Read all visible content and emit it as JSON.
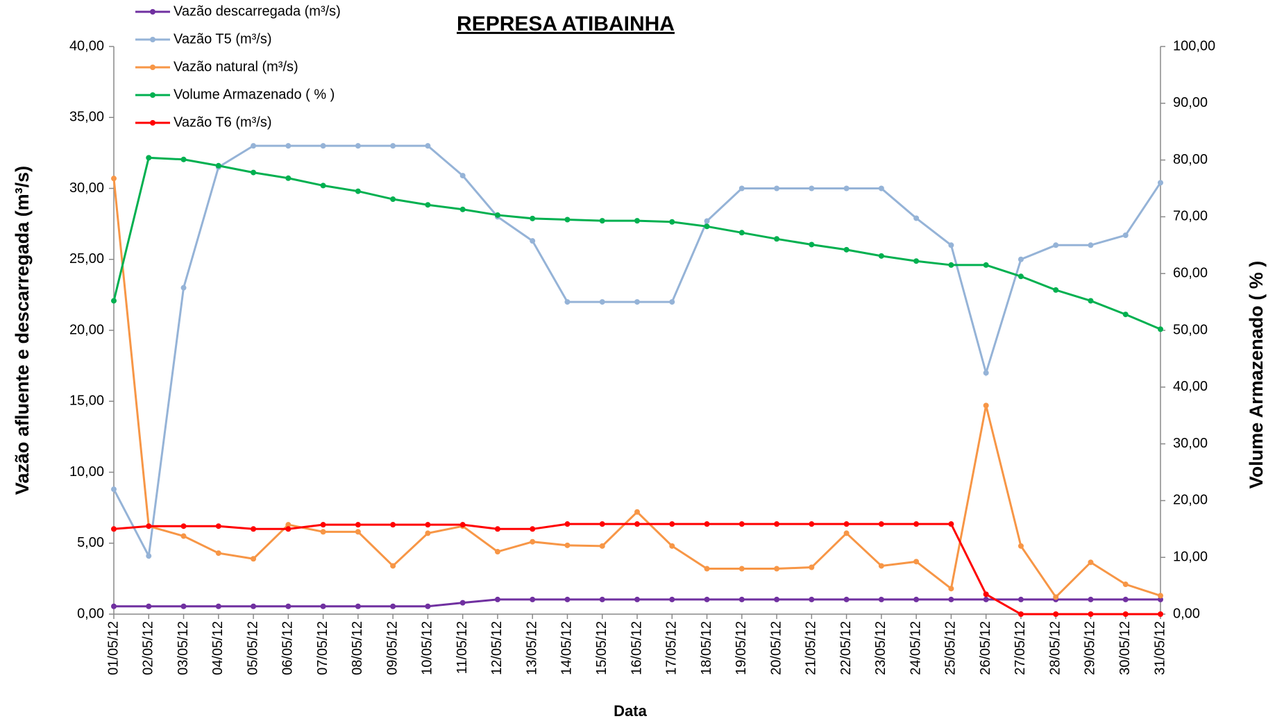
{
  "chart_data": {
    "type": "line",
    "title": "REPRESA ATIBAINHA",
    "x_label": "Data",
    "y_label": "Vazão afluente e descarregada (m³/s)",
    "y2_label": "Volume Armazenado ( % )",
    "categories": [
      "01/05/12",
      "02/05/12",
      "03/05/12",
      "04/05/12",
      "05/05/12",
      "06/05/12",
      "07/05/12",
      "08/05/12",
      "09/05/12",
      "10/05/12",
      "11/05/12",
      "12/05/12",
      "13/05/12",
      "14/05/12",
      "15/05/12",
      "16/05/12",
      "17/05/12",
      "18/05/12",
      "19/05/12",
      "20/05/12",
      "21/05/12",
      "22/05/12",
      "23/05/12",
      "24/05/12",
      "25/05/12",
      "26/05/12",
      "27/05/12",
      "28/05/12",
      "29/05/12",
      "30/05/12",
      "31/05/12"
    ],
    "series": [
      {
        "name": "Vazão descarregada (m³/s)",
        "color": "#7030a0",
        "values": [
          0.55,
          0.55,
          0.55,
          0.55,
          0.55,
          0.55,
          0.55,
          0.55,
          0.55,
          0.55,
          0.8,
          1.03,
          1.03,
          1.03,
          1.03,
          1.03,
          1.03,
          1.03,
          1.03,
          1.03,
          1.03,
          1.03,
          1.03,
          1.03,
          1.03,
          1.03,
          1.03,
          1.03,
          1.03,
          1.03,
          1.03
        ]
      },
      {
        "name": "Vazão T5 (m³/s)",
        "color": "#95b3d7",
        "values": [
          8.8,
          4.1,
          23.0,
          31.5,
          33.0,
          33.0,
          33.0,
          33.0,
          33.0,
          33.0,
          30.9,
          28.0,
          26.3,
          22.0,
          22.0,
          22.0,
          22.0,
          27.7,
          30.0,
          30.0,
          30.0,
          30.0,
          30.0,
          27.9,
          26.0,
          17.0,
          25.0,
          26.0,
          26.0,
          26.7,
          30.4
        ]
      },
      {
        "name": "Vazão natural (m³/s)",
        "color": "#f79646",
        "values": [
          30.7,
          6.2,
          5.5,
          4.3,
          3.9,
          6.3,
          5.8,
          5.8,
          3.4,
          5.7,
          6.2,
          4.4,
          5.1,
          4.85,
          4.8,
          7.2,
          4.8,
          3.2,
          3.2,
          3.2,
          3.3,
          5.7,
          3.4,
          3.7,
          1.8,
          14.7,
          4.8,
          1.2,
          3.65,
          2.1,
          1.3
        ]
      },
      {
        "name": "Volume Armazenado ( % )",
        "color": "#00b050",
        "axis": "y2",
        "values": [
          55.2,
          80.4,
          80.1,
          79.0,
          77.8,
          76.8,
          75.5,
          74.5,
          73.1,
          72.1,
          71.3,
          70.3,
          69.7,
          69.5,
          69.3,
          69.3,
          69.1,
          68.3,
          67.2,
          66.1,
          65.1,
          64.2,
          63.1,
          62.2,
          61.5,
          61.5,
          59.5,
          57.1,
          55.2,
          52.8,
          50.2
        ]
      },
      {
        "name": "Vazão T6 (m³/s)",
        "color": "#ff0000",
        "values": [
          6.0,
          6.2,
          6.2,
          6.2,
          6.0,
          6.0,
          6.3,
          6.3,
          6.3,
          6.3,
          6.3,
          6.0,
          6.0,
          6.35,
          6.35,
          6.35,
          6.35,
          6.35,
          6.35,
          6.35,
          6.35,
          6.35,
          6.35,
          6.35,
          6.35,
          1.4,
          0,
          0,
          0,
          0,
          0
        ]
      }
    ],
    "ylim": [
      0,
      40
    ],
    "yticks": [
      {
        "value": 0,
        "label": "0,00"
      },
      {
        "value": 5,
        "label": "5,00"
      },
      {
        "value": 10,
        "label": "10,00"
      },
      {
        "value": 15,
        "label": "15,00"
      },
      {
        "value": 20,
        "label": "20,00"
      },
      {
        "value": 25,
        "label": "25,00"
      },
      {
        "value": 30,
        "label": "30,00"
      },
      {
        "value": 35,
        "label": "35,00"
      },
      {
        "value": 40,
        "label": "40,00"
      }
    ],
    "y2lim": [
      0,
      100
    ],
    "y2ticks": [
      {
        "value": 0,
        "label": "0,00"
      },
      {
        "value": 10,
        "label": "10,00"
      },
      {
        "value": 20,
        "label": "20,00"
      },
      {
        "value": 30,
        "label": "30,00"
      },
      {
        "value": 40,
        "label": "40,00"
      },
      {
        "value": 50,
        "label": "50,00"
      },
      {
        "value": 60,
        "label": "60,00"
      },
      {
        "value": 70,
        "label": "70,00"
      },
      {
        "value": 80,
        "label": "80,00"
      },
      {
        "value": 90,
        "label": "90,00"
      },
      {
        "value": 100,
        "label": "100,00"
      }
    ],
    "grid": false,
    "legend": "top-left"
  }
}
